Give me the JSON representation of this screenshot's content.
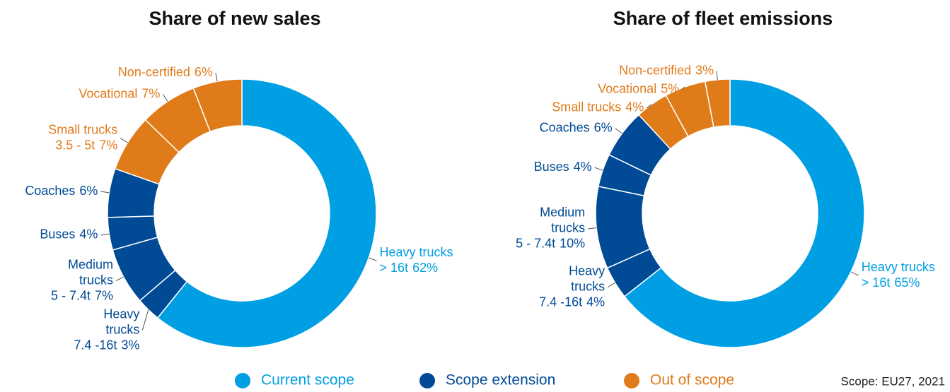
{
  "chart_data": [
    {
      "type": "donut",
      "title": "Share of new sales",
      "categories": [
        [
          "Heavy trucks",
          "> 16t"
        ],
        [
          "Heavy",
          "trucks",
          "7.4 -16t"
        ],
        [
          "Medium",
          "trucks",
          "5 - 7.4t"
        ],
        [
          "Buses"
        ],
        [
          "Coaches"
        ],
        [
          "Small trucks",
          "3.5 - 5t"
        ],
        [
          "Vocational"
        ],
        [
          "Non-certified"
        ]
      ],
      "values": [
        62,
        3,
        7,
        4,
        6,
        7,
        7,
        6
      ],
      "value_labels": [
        "62%",
        "3%",
        "7%",
        "4%",
        "6%",
        "7%",
        "7%",
        "6%"
      ],
      "colors": [
        "#009fe3",
        "#004a96",
        "#004a96",
        "#004a96",
        "#004a96",
        "#e07b1a",
        "#e07b1a",
        "#e07b1a"
      ]
    },
    {
      "type": "donut",
      "title": "Share of fleet emissions",
      "categories": [
        [
          "Heavy trucks",
          "> 16t"
        ],
        [
          "Heavy",
          "trucks",
          "7.4 -16t"
        ],
        [
          "Medium",
          "trucks",
          "5 - 7.4t"
        ],
        [
          "Buses"
        ],
        [
          "Coaches"
        ],
        [
          "Small trucks"
        ],
        [
          "Vocational"
        ],
        [
          "Non-certified"
        ]
      ],
      "values": [
        65,
        4,
        10,
        4,
        6,
        4,
        5,
        3
      ],
      "value_labels": [
        "65%",
        "4%",
        "10%",
        "4%",
        "6%",
        "4%",
        "5%",
        "3%"
      ],
      "colors": [
        "#009fe3",
        "#004a96",
        "#004a96",
        "#004a96",
        "#004a96",
        "#e07b1a",
        "#e07b1a",
        "#e07b1a"
      ]
    }
  ],
  "legend": [
    {
      "name": "Current scope",
      "color": "#009fe3"
    },
    {
      "name": "Scope extension",
      "color": "#004a96"
    },
    {
      "name": "Out of scope",
      "color": "#e07b1a"
    }
  ],
  "note": "Scope: EU27, 2021"
}
